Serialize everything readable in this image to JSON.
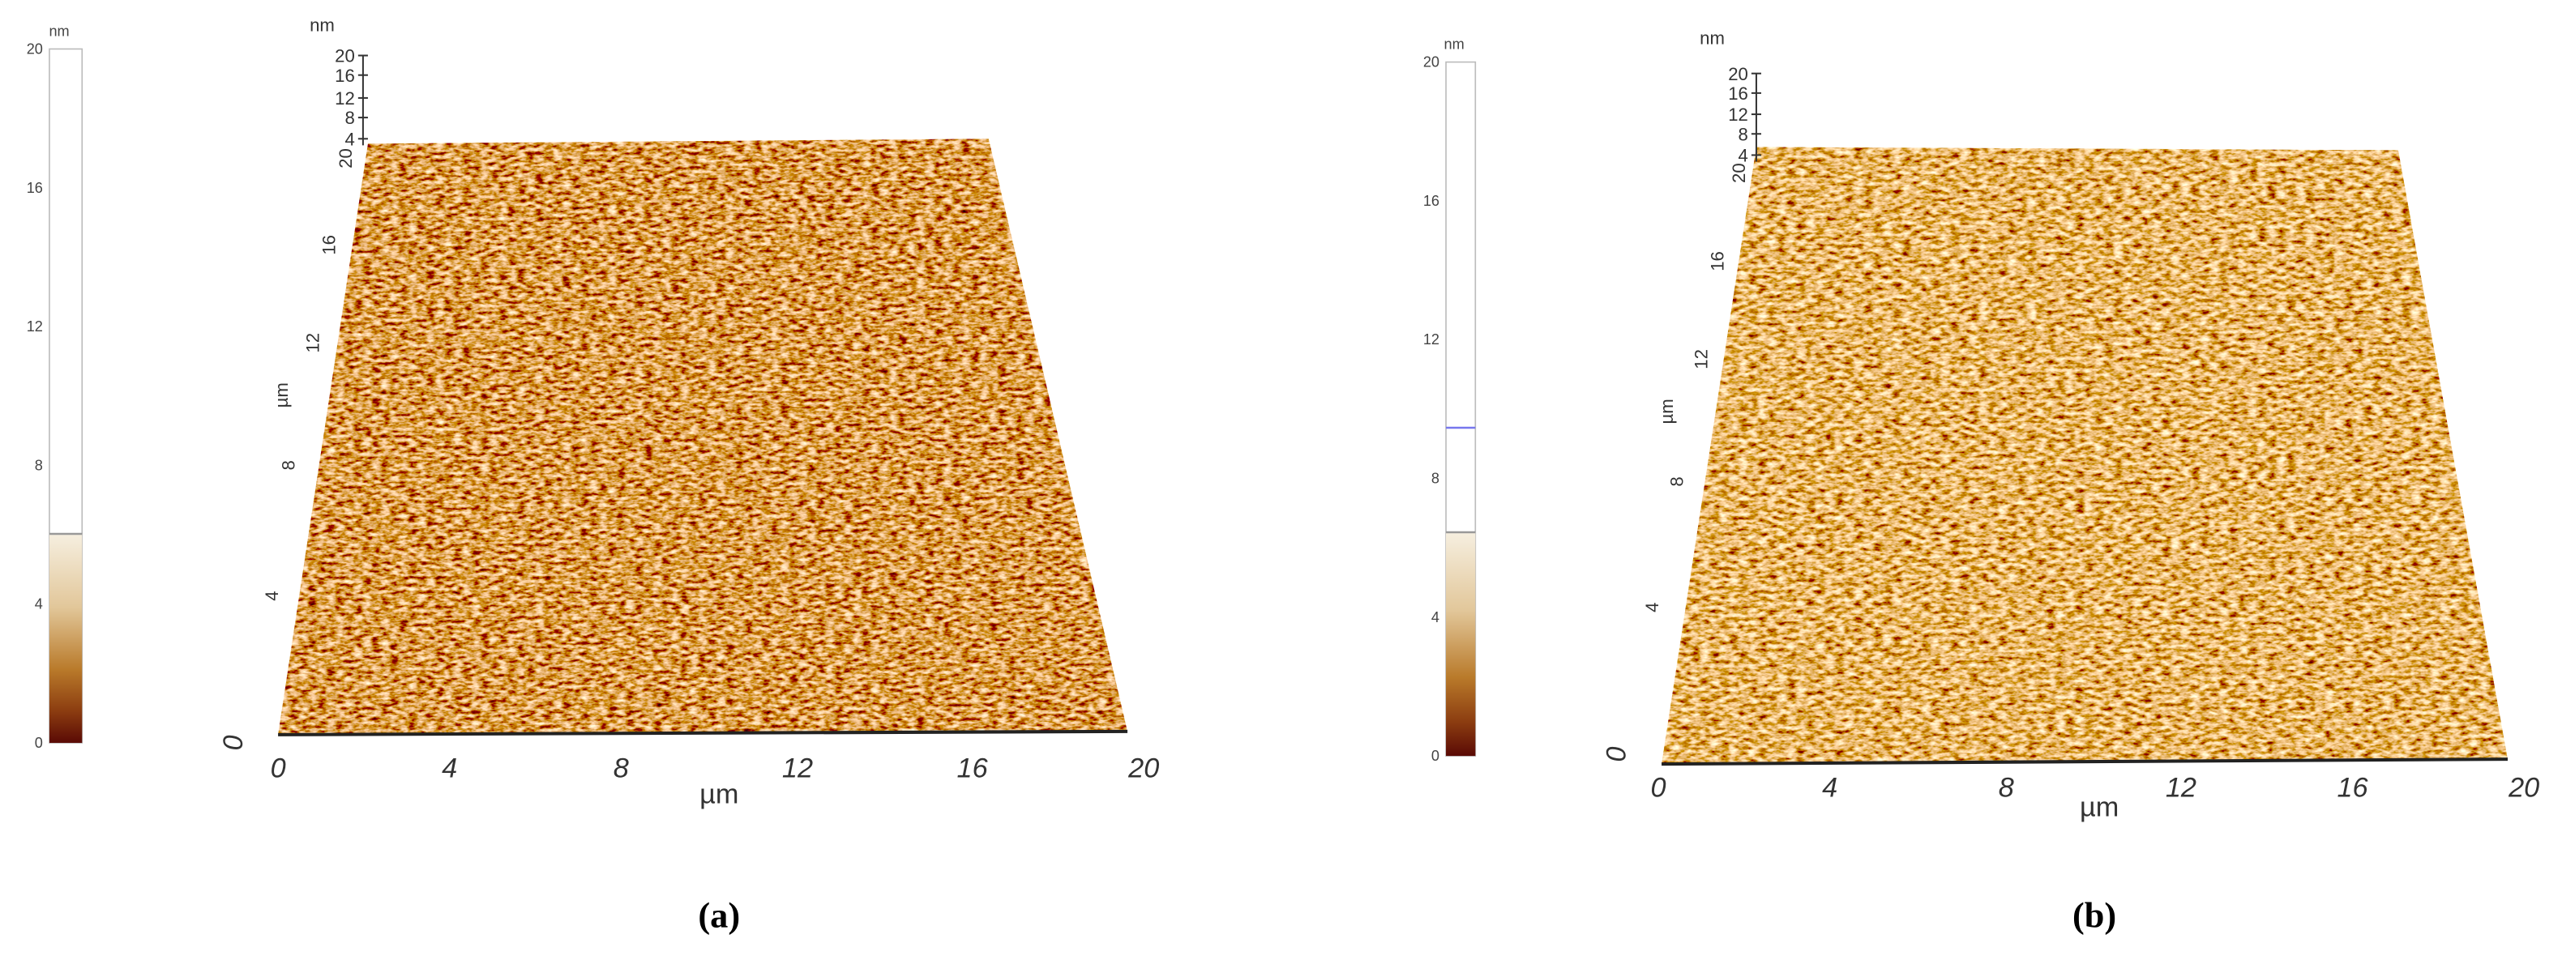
{
  "panels": [
    {
      "caption": "(a)",
      "colorbar": {
        "unit": "nm",
        "ticks": [
          "0",
          "4",
          "8",
          "12",
          "16",
          "20"
        ]
      },
      "z_axis": {
        "unit": "nm",
        "ticks": [
          "4",
          "8",
          "12",
          "16",
          "20"
        ]
      },
      "y_axis": {
        "label": "µm",
        "ticks": [
          "0",
          "4",
          "8",
          "12",
          "16",
          "20"
        ]
      },
      "x_axis": {
        "label": "µm",
        "ticks": [
          "0",
          "4",
          "8",
          "12",
          "16",
          "20"
        ]
      }
    },
    {
      "caption": "(b)",
      "colorbar": {
        "unit": "nm",
        "ticks": [
          "0",
          "4",
          "8",
          "12",
          "16",
          "20"
        ]
      },
      "z_axis": {
        "unit": "nm",
        "ticks": [
          "4",
          "8",
          "12",
          "16",
          "20"
        ]
      },
      "y_axis": {
        "label": "µm",
        "ticks": [
          "0",
          "4",
          "8",
          "12",
          "16",
          "20"
        ]
      },
      "x_axis": {
        "label": "µm",
        "ticks": [
          "0",
          "4",
          "8",
          "12",
          "16",
          "20"
        ]
      }
    }
  ]
}
